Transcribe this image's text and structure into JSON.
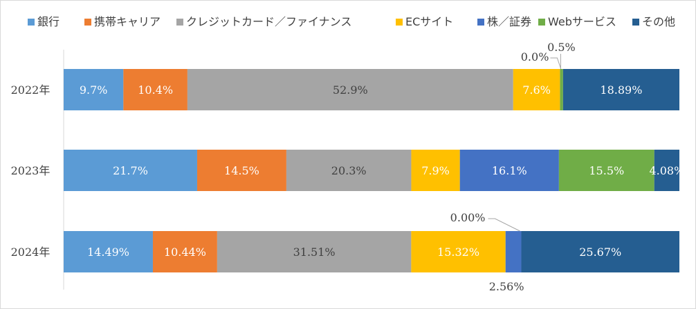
{
  "chart_data": {
    "type": "bar",
    "orientation": "horizontal",
    "stacked": "percent",
    "legend_position": "top",
    "grid": false,
    "title": "",
    "xlabel": "",
    "ylabel": "",
    "categories": [
      "2022年",
      "2023年",
      "2024年"
    ],
    "series": [
      {
        "name": "銀行",
        "color": "#5b9bd5",
        "values": [
          9.7,
          21.7,
          14.49
        ],
        "labels": [
          "9.7%",
          "21.7%",
          "14.49%"
        ]
      },
      {
        "name": "携帯キャリア",
        "color": "#ed7d31",
        "values": [
          10.4,
          14.5,
          10.44
        ],
        "labels": [
          "10.4%",
          "14.5%",
          "10.44%"
        ]
      },
      {
        "name": "クレジットカード／ファイナンス",
        "color": "#a5a5a5",
        "values": [
          52.9,
          20.3,
          31.51
        ],
        "labels": [
          "52.9%",
          "20.3%",
          "31.51%"
        ]
      },
      {
        "name": "ECサイト",
        "color": "#ffc000",
        "values": [
          7.6,
          7.9,
          15.32
        ],
        "labels": [
          "7.6%",
          "7.9%",
          "15.32%"
        ]
      },
      {
        "name": "株／証券",
        "color": "#4472c4",
        "values": [
          0.0,
          16.1,
          2.56
        ],
        "labels": [
          "0.0%",
          "16.1%",
          "2.56%"
        ]
      },
      {
        "name": "Webサービス",
        "color": "#70ad47",
        "values": [
          0.5,
          15.5,
          0.0
        ],
        "labels": [
          "0.5%",
          "15.5%",
          "0.00%"
        ]
      },
      {
        "name": "その他",
        "color": "#255e91",
        "values": [
          18.89,
          4.08,
          25.67
        ],
        "labels": [
          "18.89%",
          "4.08%",
          "25.67%"
        ]
      }
    ]
  }
}
